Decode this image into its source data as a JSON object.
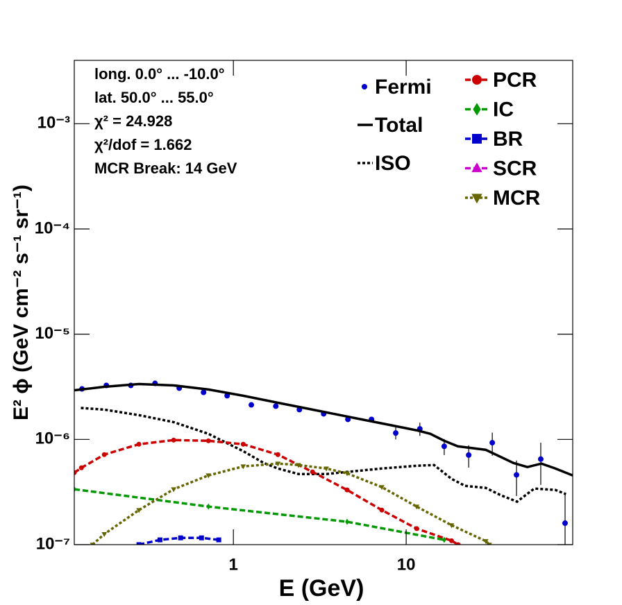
{
  "chart_data": {
    "type": "line",
    "x_label": "E (GeV)",
    "y_label": "E² ϕ (GeV cm⁻² s⁻¹ sr⁻¹)",
    "annotations": [
      "long. 0.0° ... -10.0°",
      "lat. 50.0° ... 55.0°",
      "χ² = 24.928",
      "χ²/dof = 1.662",
      "MCR Break: 14 GeV"
    ],
    "log_x": true,
    "log_y": true,
    "xlim": [
      0.12,
      92
    ],
    "ylim": [
      1e-07,
      0.004
    ],
    "xticks": [
      1,
      10
    ],
    "yticks": [
      {
        "value": 1e-07,
        "label": "10⁻⁷"
      },
      {
        "value": 1e-06,
        "label": "10⁻⁶"
      },
      {
        "value": 1e-05,
        "label": "10⁻⁵"
      },
      {
        "value": 0.0001,
        "label": "10⁻⁴"
      },
      {
        "value": 0.001,
        "label": "10⁻³"
      }
    ],
    "series": [
      {
        "name": "Fermi",
        "color": "#0000cc",
        "line": "none",
        "marker": "circle",
        "x": [
          0.133,
          0.184,
          0.255,
          0.352,
          0.486,
          0.672,
          0.92,
          1.27,
          1.76,
          2.41,
          3.33,
          4.6,
          6.3,
          8.7,
          12.0,
          16.6,
          23.0,
          31.5,
          43.5,
          60.1,
          83.1
        ],
        "values": [
          3.02e-06,
          3.26e-06,
          3.26e-06,
          3.41e-06,
          3.07e-06,
          2.8e-06,
          2.6e-06,
          2.13e-06,
          2.07e-06,
          1.92e-06,
          1.75e-06,
          1.55e-06,
          1.55e-06,
          1.15e-06,
          1.26e-06,
          8.6e-07,
          7.1e-07,
          9.3e-07,
          4.6e-07,
          6.5e-07,
          1.6e-07
        ],
        "errors": [
          4e-08,
          4e-08,
          4e-08,
          4e-08,
          4e-08,
          4e-08,
          4e-08,
          4e-08,
          4e-08,
          4e-08,
          4e-08,
          5e-08,
          7e-08,
          1.5e-07,
          1.8e-07,
          1.5e-07,
          1.7e-07,
          2.3e-07,
          1.7e-07,
          2.8e-07,
          1.5e-07
        ]
      },
      {
        "name": "Total",
        "color": "#000000",
        "line": "solid",
        "marker": "none",
        "x": [
          0.12,
          0.179,
          0.284,
          0.451,
          0.717,
          1.14,
          1.81,
          2.87,
          4.55,
          7.23,
          11.5,
          13.8,
          16.6,
          19.9,
          28.9,
          41.8,
          50.3,
          60.6,
          73.0,
          92
        ],
        "values": [
          2.93e-06,
          3.16e-06,
          3.36e-06,
          3.26e-06,
          2.98e-06,
          2.6e-06,
          2.23e-06,
          1.92e-06,
          1.65e-06,
          1.42e-06,
          1.22e-06,
          1.13e-06,
          9.7e-07,
          8.6e-07,
          7.96e-07,
          5.97e-07,
          5.46e-07,
          5.89e-07,
          5.29e-07,
          4.55e-07
        ]
      },
      {
        "name": "ISO",
        "color": "#000000",
        "line": "dotted",
        "marker": "none",
        "x": [
          0.131,
          0.179,
          0.284,
          0.451,
          0.717,
          0.946,
          1.14,
          1.5,
          1.81,
          2.38,
          3.45,
          4.55,
          7.23,
          11.5,
          14.5,
          18.3,
          21.9,
          28.9,
          34.8,
          43.8,
          55.1,
          73.0,
          84.1
        ],
        "values": [
          1.99e-06,
          1.92e-06,
          1.7e-06,
          1.46e-06,
          1.13e-06,
          9e-07,
          7.73e-07,
          5.97e-07,
          5.29e-07,
          4.69e-07,
          4.69e-07,
          4.91e-07,
          5.29e-07,
          5.62e-07,
          5.71e-07,
          4.22e-07,
          3.62e-07,
          3.46e-07,
          2.98e-07,
          2.56e-07,
          3.41e-07,
          3.31e-07,
          3.02e-07
        ]
      },
      {
        "name": "PCR",
        "color": "#cc0000",
        "line": "dashed",
        "marker": "circle",
        "x": [
          0.12,
          0.132,
          0.179,
          0.284,
          0.451,
          0.717,
          1.14,
          1.81,
          2.87,
          4.55,
          7.23,
          11.5,
          18.3,
          20.0
        ],
        "values": [
          4.83e-07,
          5.37e-07,
          7.17e-07,
          9e-07,
          9.85e-07,
          9.7e-07,
          9e-07,
          7.17e-07,
          4.91e-07,
          3.31e-07,
          2.13e-07,
          1.42e-07,
          1.09e-07,
          1e-07
        ]
      },
      {
        "name": "IC",
        "color": "#009900",
        "line": "dashed",
        "marker": "diamond",
        "x": [
          0.12,
          0.717,
          4.55,
          16.6
        ],
        "values": [
          3.36e-07,
          2.3e-07,
          1.65e-07,
          1.11e-07
        ]
      },
      {
        "name": "BR",
        "color": "#0000cc",
        "line": "dashed",
        "marker": "square",
        "x": [
          0.284,
          0.376,
          0.495,
          0.654,
          0.823
        ],
        "values": [
          1e-07,
          1.11e-07,
          1.16e-07,
          1.16e-07,
          1.11e-07
        ]
      },
      {
        "name": "SCR",
        "color": "#cc00cc",
        "line": "dashed",
        "marker": "triangle-up",
        "x": [],
        "values": []
      },
      {
        "name": "MCR",
        "color": "#666600",
        "line": "dotted",
        "marker": "triangle-down",
        "x": [
          0.153,
          0.179,
          0.284,
          0.451,
          0.717,
          1.14,
          1.81,
          2.38,
          3.45,
          4.55,
          7.23,
          11.5,
          18.3,
          28.9,
          30.3
        ],
        "values": [
          1e-07,
          1.26e-07,
          2.13e-07,
          3.36e-07,
          4.55e-07,
          5.54e-07,
          5.89e-07,
          5.71e-07,
          5.29e-07,
          4.76e-07,
          3.52e-07,
          2.3e-07,
          1.53e-07,
          1.08e-07,
          1e-07
        ]
      }
    ]
  }
}
